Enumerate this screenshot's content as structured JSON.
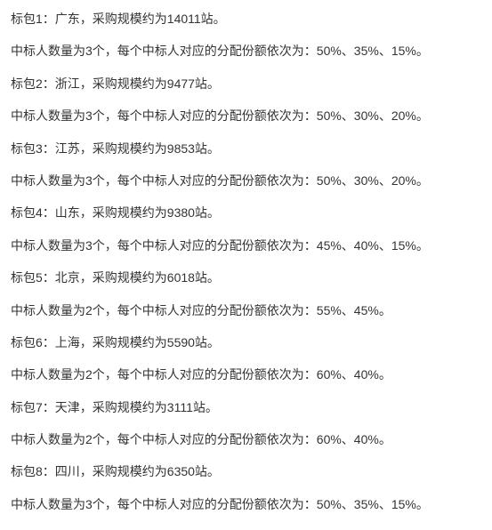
{
  "text_color": "#333333",
  "background_color": "#ffffff",
  "font_size": 14,
  "line_spacing": 14,
  "packages": [
    {
      "header": "标包1：广东，采购规模约为14011站。",
      "detail": "中标人数量为3个，每个中标人对应的分配份额依次为：50%、35%、15%。"
    },
    {
      "header": "标包2：浙江，采购规模约为9477站。",
      "detail": "中标人数量为3个，每个中标人对应的分配份额依次为：50%、30%、20%。"
    },
    {
      "header": "标包3：江苏，采购规模约为9853站。",
      "detail": "中标人数量为3个，每个中标人对应的分配份额依次为：50%、30%、20%。"
    },
    {
      "header": "标包4：山东，采购规模约为9380站。",
      "detail": "中标人数量为3个，每个中标人对应的分配份额依次为：45%、40%、15%。"
    },
    {
      "header": "标包5：北京，采购规模约为6018站。",
      "detail": "中标人数量为2个，每个中标人对应的分配份额依次为：55%、45%。"
    },
    {
      "header": "标包6：上海，采购规模约为5590站。",
      "detail": "中标人数量为2个，每个中标人对应的分配份额依次为：60%、40%。"
    },
    {
      "header": "标包7：天津，采购规模约为3111站。",
      "detail": "中标人数量为2个，每个中标人对应的分配份额依次为：60%、40%。"
    },
    {
      "header": "标包8：四川，采购规模约为6350站。",
      "detail": "中标人数量为3个，每个中标人对应的分配份额依次为：50%、35%、15%。"
    }
  ]
}
